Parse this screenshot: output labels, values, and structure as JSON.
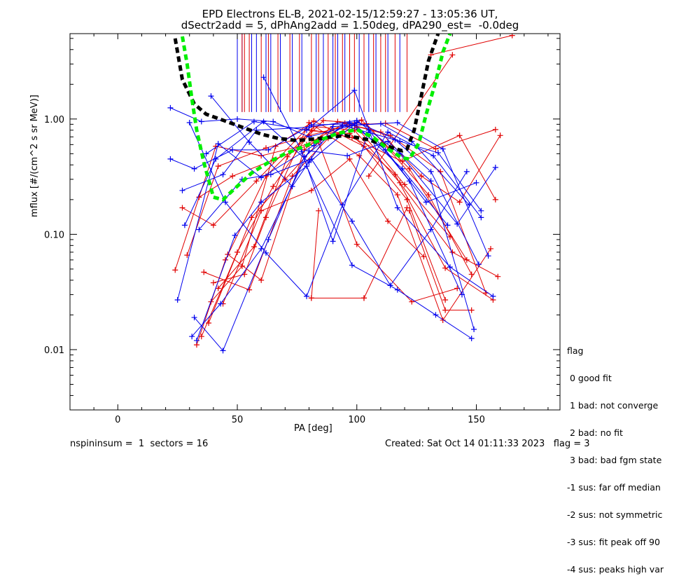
{
  "title_line1": "EPD Electrons EL-B, 2021-02-15/12:59:27 - 13:05:36 UT,",
  "title_line2": "dSectr2add = 5, dPhAng2add = 1.50deg, dPA290_est=  -0.0deg",
  "footer": {
    "left": "nspininsum =  1  sectors = 16",
    "right": "Created: Sat Oct 14 01:11:33 2023   flag = 3"
  },
  "flag_legend": {
    "title": "flag",
    "items": [
      " 0 good fit",
      " 1 bad: not converge",
      " 2 bad: no fit",
      " 3 bad: bad fgm state",
      "-1 sus: far off median",
      "-2 sus: not symmetric",
      "-3 sus: fit peak off 90",
      "-4 sus: peaks high var"
    ]
  },
  "colors": {
    "red_series": "#e00000",
    "blue_series": "#0000ee",
    "black_fit": "#000000",
    "green_fit": "#00ee00"
  },
  "chart_data": {
    "type": "line",
    "xlabel": "PA [deg]",
    "ylabel": "mflux [#/(cm^2 s sr MeV)]",
    "xlim": [
      -20,
      185
    ],
    "ylim": [
      0.003,
      5.5
    ],
    "yscale": "log",
    "xticks": [
      0,
      50,
      100,
      150
    ],
    "xtick_labels": [
      "0",
      "50",
      "100",
      "150"
    ],
    "yticks": [
      0.01,
      0.1,
      1.0
    ],
    "ytick_labels": [
      "0.01",
      "0.10",
      "1.00"
    ],
    "series": [
      {
        "color": "red",
        "x": [
          29,
          42,
          62,
          80,
          96,
          112,
          133,
          158
        ],
        "y": [
          0.066,
          0.39,
          0.56,
          0.72,
          0.88,
          0.92,
          0.55,
          0.81
        ]
      },
      {
        "color": "red",
        "x": [
          33,
          45,
          62,
          81,
          97,
          116,
          137,
          157
        ],
        "y": [
          0.011,
          0.06,
          0.32,
          0.79,
          0.75,
          0.33,
          0.051,
          0.027
        ]
      },
      {
        "color": "red",
        "x": [
          35,
          50,
          65,
          82,
          99,
          118,
          140,
          159
        ],
        "y": [
          0.013,
          0.07,
          0.26,
          0.86,
          0.8,
          0.28,
          0.07,
          0.043
        ]
      },
      {
        "color": "red",
        "x": [
          24,
          41,
          60,
          79,
          95,
          114,
          135,
          154
        ],
        "y": [
          0.049,
          0.58,
          0.48,
          0.6,
          0.92,
          0.72,
          0.35,
          0.031
        ]
      },
      {
        "color": "red",
        "x": [
          34,
          48,
          65,
          80,
          100,
          120,
          139
        ],
        "y": [
          0.21,
          0.32,
          0.44,
          0.6,
          0.85,
          0.27,
          0.095
        ]
      },
      {
        "color": "red",
        "x": [
          27,
          40,
          58,
          79,
          98,
          119,
          143,
          158
        ],
        "y": [
          0.17,
          0.12,
          0.29,
          0.82,
          0.69,
          0.43,
          0.72,
          0.2
        ]
      },
      {
        "color": "red",
        "x": [
          39,
          52,
          66,
          82,
          103,
          121,
          137
        ],
        "y": [
          0.026,
          0.053,
          0.58,
          0.96,
          0.58,
          0.2,
          0.027
        ]
      },
      {
        "color": "red",
        "x": [
          40,
          53,
          62,
          80,
          101,
          117,
          136,
          156
        ],
        "y": [
          0.038,
          0.045,
          0.14,
          0.93,
          0.48,
          0.22,
          0.018,
          0.075
        ]
      },
      {
        "color": "red",
        "x": [
          44,
          60,
          81,
          97,
          113,
          128
        ],
        "y": [
          0.025,
          0.16,
          0.24,
          0.45,
          0.13,
          0.064
        ]
      },
      {
        "color": "red",
        "x": [
          36,
          55,
          73,
          88,
          102,
          122,
          146
        ],
        "y": [
          0.047,
          0.033,
          0.32,
          0.68,
          0.98,
          0.37,
          0.06
        ]
      },
      {
        "color": "red",
        "x": [
          38,
          56,
          70,
          84,
          100,
          123,
          142
        ],
        "y": [
          0.017,
          0.14,
          0.3,
          0.63,
          0.082,
          0.026,
          0.034
        ]
      },
      {
        "color": "red",
        "x": [
          81,
          103
        ],
        "y": [
          0.028,
          0.028
        ]
      },
      {
        "color": "red",
        "x": [
          103,
          121
        ],
        "y": [
          0.028,
          0.17
        ]
      },
      {
        "color": "red",
        "x": [
          81,
          84
        ],
        "y": [
          0.028,
          0.16
        ]
      },
      {
        "color": "red",
        "x": [
          122,
          137,
          148
        ],
        "y": [
          0.16,
          0.022,
          0.022
        ]
      },
      {
        "color": "red",
        "x": [
          42,
          57,
          71,
          86,
          104,
          130,
          148
        ],
        "y": [
          0.034,
          0.078,
          0.47,
          0.97,
          0.91,
          0.22,
          0.045
        ]
      },
      {
        "color": "red",
        "x": [
          46,
          60,
          78,
          92,
          110,
          127,
          143,
          160
        ],
        "y": [
          0.067,
          0.04,
          0.54,
          0.95,
          0.77,
          0.32,
          0.19,
          0.72
        ]
      },
      {
        "color": "red",
        "x": [
          131,
          165
        ],
        "y": [
          3.6,
          5.3
        ]
      },
      {
        "color": "red",
        "x": [
          105,
          140
        ],
        "y": [
          0.32,
          3.6
        ]
      },
      {
        "color": "blue",
        "x": [
          22,
          35,
          50,
          65,
          80,
          98,
          117,
          136,
          155
        ],
        "y": [
          1.25,
          0.95,
          1.0,
          0.95,
          0.7,
          0.88,
          0.93,
          0.55,
          0.065
        ]
      },
      {
        "color": "blue",
        "x": [
          25,
          42,
          60,
          82,
          97,
          112,
          129,
          150
        ],
        "y": [
          0.027,
          0.61,
          0.31,
          0.59,
          0.93,
          0.54,
          0.19,
          0.28
        ]
      },
      {
        "color": "blue",
        "x": [
          27,
          44,
          58,
          80,
          100,
          118,
          142,
          158
        ],
        "y": [
          0.24,
          0.33,
          0.8,
          0.85,
          0.97,
          0.5,
          0.123,
          0.38
        ]
      },
      {
        "color": "blue",
        "x": [
          22,
          32,
          48,
          63,
          81,
          99,
          119,
          138
        ],
        "y": [
          0.45,
          0.37,
          0.54,
          0.54,
          0.89,
          0.91,
          0.37,
          0.12
        ]
      },
      {
        "color": "blue",
        "x": [
          32,
          44,
          63,
          78,
          94,
          116,
          131,
          151
        ],
        "y": [
          0.019,
          0.0098,
          0.09,
          0.47,
          0.88,
          0.66,
          0.35,
          0.055
        ]
      },
      {
        "color": "blue",
        "x": [
          33,
          49,
          60,
          79,
          98,
          117,
          133,
          148
        ],
        "y": [
          0.012,
          0.098,
          0.19,
          0.39,
          0.054,
          0.033,
          0.02,
          0.0125
        ]
      },
      {
        "color": "blue",
        "x": [
          28,
          41,
          61,
          80,
          100,
          118,
          134,
          152
        ],
        "y": [
          0.12,
          0.45,
          0.95,
          0.42,
          0.94,
          0.64,
          0.51,
          0.16
        ]
      },
      {
        "color": "blue",
        "x": [
          34,
          52,
          64,
          81,
          98,
          114,
          131,
          146
        ],
        "y": [
          0.11,
          0.3,
          0.33,
          0.45,
          0.13,
          0.036,
          0.11,
          0.35
        ]
      },
      {
        "color": "blue",
        "x": [
          37,
          57,
          79,
          99,
          117,
          139,
          157
        ],
        "y": [
          0.5,
          0.95,
          0.8,
          1.77,
          0.17,
          0.052,
          0.029
        ]
      },
      {
        "color": "blue",
        "x": [
          31,
          43,
          60,
          80,
          96,
          113,
          131,
          149
        ],
        "y": [
          0.013,
          0.025,
          0.075,
          0.53,
          0.48,
          0.64,
          0.29,
          0.015
        ]
      },
      {
        "color": "blue",
        "x": [
          39,
          55,
          73,
          90,
          110,
          123,
          147
        ],
        "y": [
          1.58,
          0.63,
          0.26,
          0.86,
          0.91,
          0.64,
          0.18
        ]
      },
      {
        "color": "blue",
        "x": [
          30,
          45,
          62,
          79,
          94,
          113,
          132,
          152
        ],
        "y": [
          0.93,
          0.19,
          0.069,
          0.029,
          0.18,
          0.77,
          0.48,
          0.14
        ]
      },
      {
        "color": "blue",
        "x": [
          61,
          77,
          90,
          105,
          122,
          144
        ],
        "y": [
          2.3,
          0.52,
          0.087,
          0.8,
          0.29,
          0.03
        ]
      }
    ],
    "vlines_blue": [
      50,
      52,
      56,
      58,
      62,
      64,
      68,
      73,
      77,
      83,
      86,
      90,
      92,
      95,
      101,
      103,
      105,
      108,
      113,
      118
    ],
    "vlines_red": [
      52,
      53,
      55,
      60,
      63,
      67,
      72,
      76,
      81,
      84,
      88,
      91,
      94,
      97,
      99,
      103,
      107,
      110,
      112,
      116,
      121
    ],
    "fit_black": {
      "x": [
        24,
        27,
        32,
        37,
        45,
        54,
        60,
        67,
        75,
        85,
        95,
        105,
        113,
        119,
        121,
        124,
        127,
        130,
        134
      ],
      "y": [
        5.0,
        2.2,
        1.35,
        1.1,
        0.96,
        0.82,
        0.74,
        0.68,
        0.65,
        0.68,
        0.72,
        0.66,
        0.58,
        0.53,
        0.55,
        0.8,
        1.6,
        3.2,
        5.5
      ]
    },
    "fit_green": {
      "x": [
        27,
        29,
        31,
        33,
        36,
        40,
        44,
        49,
        56,
        63,
        70,
        78,
        85,
        92,
        100,
        107,
        113,
        119,
        122,
        126,
        129,
        133,
        136,
        139
      ],
      "y": [
        5.2,
        3.0,
        1.5,
        0.8,
        0.42,
        0.21,
        0.2,
        0.25,
        0.34,
        0.42,
        0.5,
        0.58,
        0.66,
        0.75,
        0.81,
        0.69,
        0.55,
        0.46,
        0.45,
        0.62,
        1.1,
        2.1,
        3.8,
        5.5
      ]
    }
  }
}
